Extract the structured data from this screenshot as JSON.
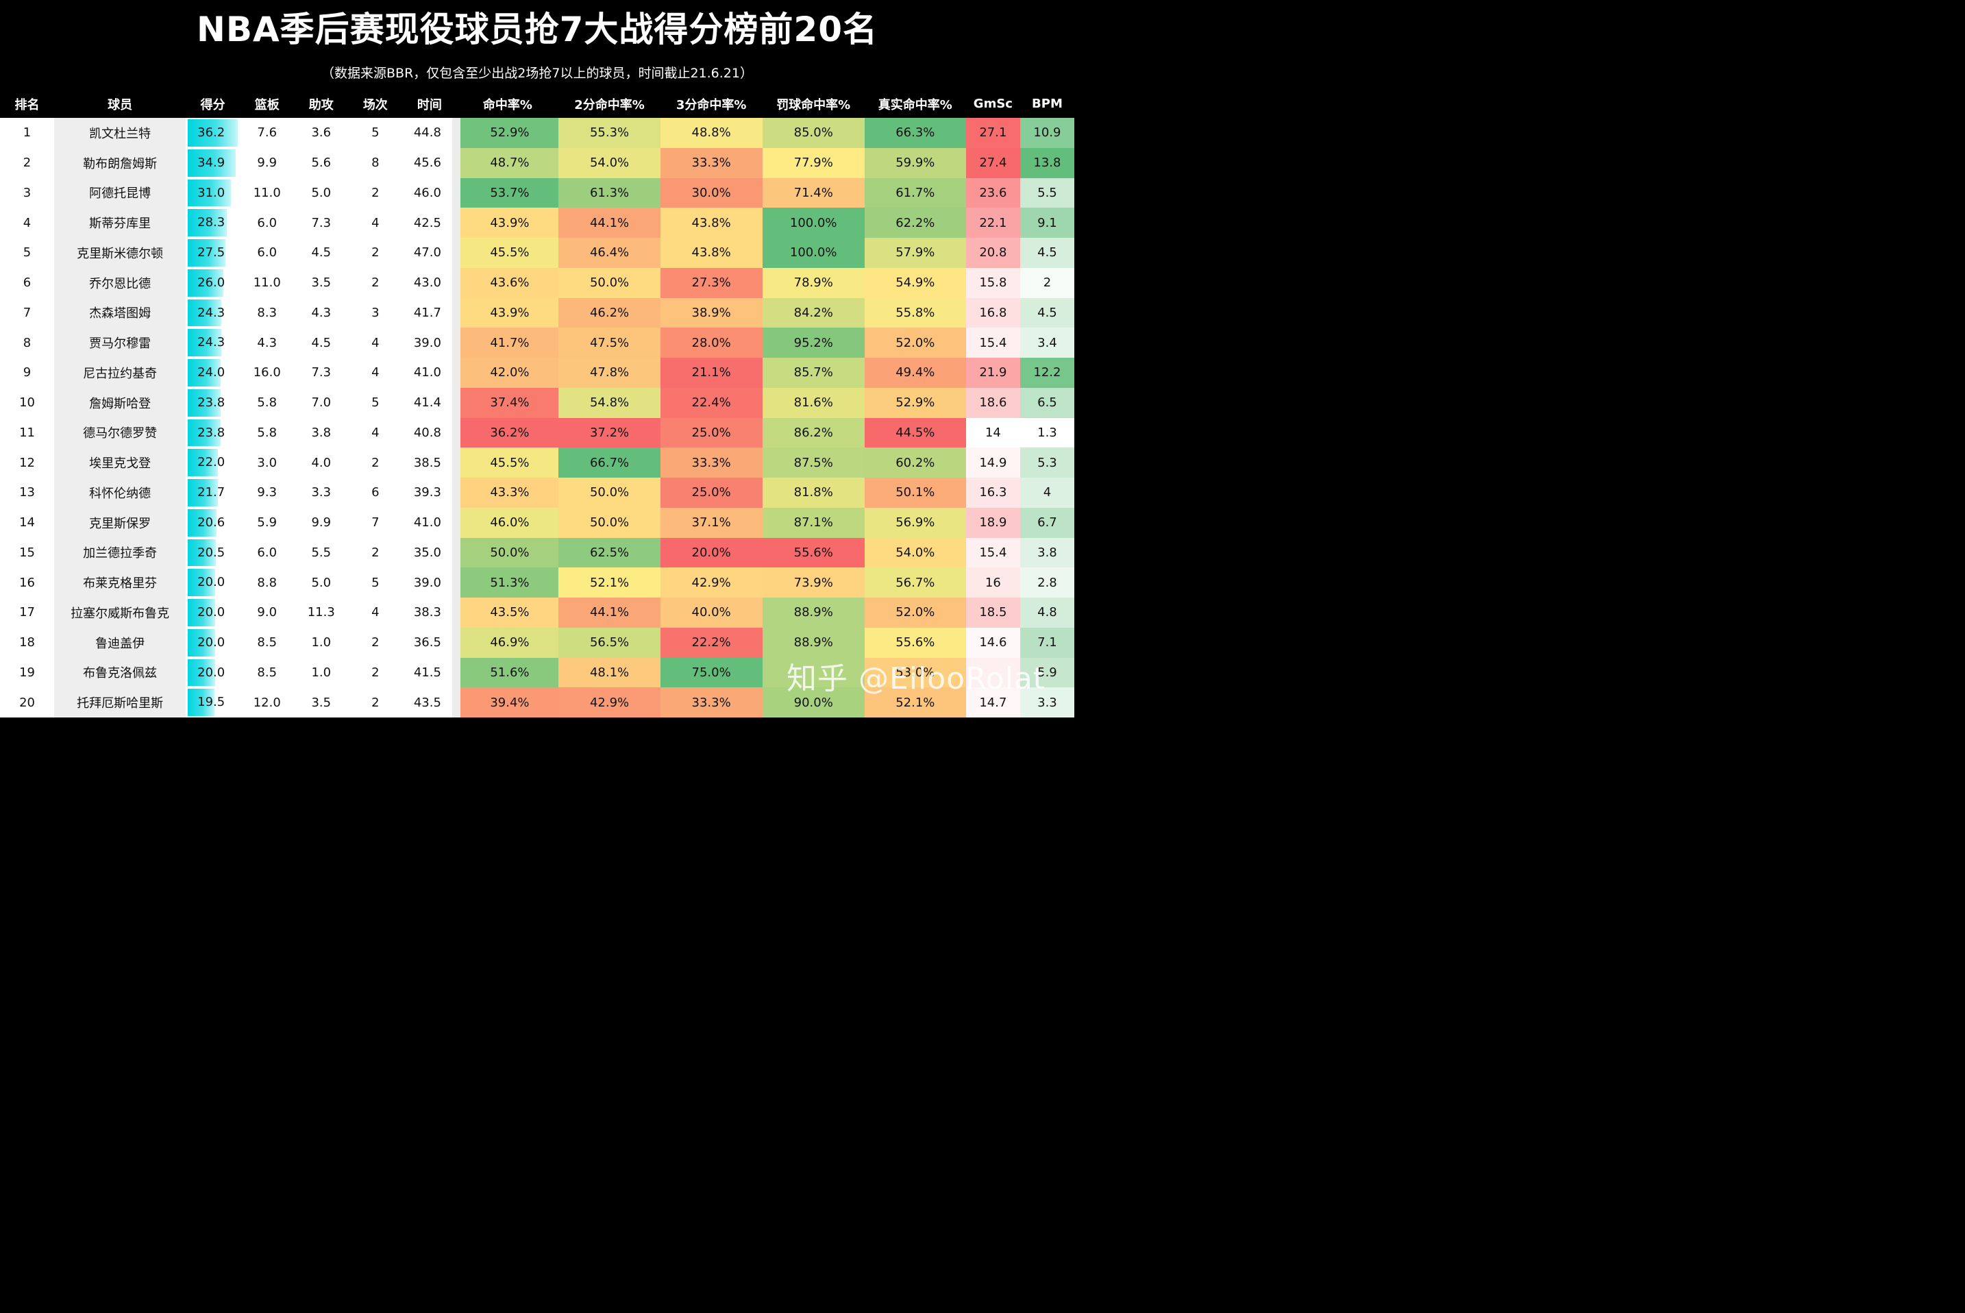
{
  "title": "NBA季后赛现役球员抢7大战得分榜前20名",
  "subtitle": "（数据来源BBR，仅包含至少出战2场抢7以上的球员，时间截止21.6.21）",
  "watermark": "知乎 @EilooRolat",
  "headers": [
    "排名",
    "球员",
    "得分",
    "篮板",
    "助攻",
    "场次",
    "时间",
    "命中率%",
    "2分命中率%",
    "3分命中率%",
    "罚球命中率%",
    "真实命中率%",
    "GmSc",
    "BPM"
  ],
  "rows": [
    [
      "1",
      "凯文杜兰特",
      "36.2",
      "7.6",
      "3.6",
      "5",
      "44.8",
      "52.9%",
      "55.3%",
      "48.8%",
      "85.0%",
      "66.3%",
      "27.1",
      "10.9"
    ],
    [
      "2",
      "勒布朗詹姆斯",
      "34.9",
      "9.9",
      "5.6",
      "8",
      "45.6",
      "48.7%",
      "54.0%",
      "33.3%",
      "77.9%",
      "59.9%",
      "27.4",
      "13.8"
    ],
    [
      "3",
      "阿德托昆博",
      "31.0",
      "11.0",
      "5.0",
      "2",
      "46.0",
      "53.7%",
      "61.3%",
      "30.0%",
      "71.4%",
      "61.7%",
      "23.6",
      "5.5"
    ],
    [
      "4",
      "斯蒂芬库里",
      "28.3",
      "6.0",
      "7.3",
      "4",
      "42.5",
      "43.9%",
      "44.1%",
      "43.8%",
      "100.0%",
      "62.2%",
      "22.1",
      "9.1"
    ],
    [
      "5",
      "克里斯米德尔顿",
      "27.5",
      "6.0",
      "4.5",
      "2",
      "47.0",
      "45.5%",
      "46.4%",
      "43.8%",
      "100.0%",
      "57.9%",
      "20.8",
      "4.5"
    ],
    [
      "6",
      "乔尔恩比德",
      "26.0",
      "11.0",
      "3.5",
      "2",
      "43.0",
      "43.6%",
      "50.0%",
      "27.3%",
      "78.9%",
      "54.9%",
      "15.8",
      "2"
    ],
    [
      "7",
      "杰森塔图姆",
      "24.3",
      "8.3",
      "4.3",
      "3",
      "41.7",
      "43.9%",
      "46.2%",
      "38.9%",
      "84.2%",
      "55.8%",
      "16.8",
      "4.5"
    ],
    [
      "8",
      "贾马尔穆雷",
      "24.3",
      "4.3",
      "4.5",
      "4",
      "39.0",
      "41.7%",
      "47.5%",
      "28.0%",
      "95.2%",
      "52.0%",
      "15.4",
      "3.4"
    ],
    [
      "9",
      "尼古拉约基奇",
      "24.0",
      "16.0",
      "7.3",
      "4",
      "41.0",
      "42.0%",
      "47.8%",
      "21.1%",
      "85.7%",
      "49.4%",
      "21.9",
      "12.2"
    ],
    [
      "10",
      "詹姆斯哈登",
      "23.8",
      "5.8",
      "7.0",
      "5",
      "41.4",
      "37.4%",
      "54.8%",
      "22.4%",
      "81.6%",
      "52.9%",
      "18.6",
      "6.5"
    ],
    [
      "11",
      "德马尔德罗赞",
      "23.8",
      "5.8",
      "3.8",
      "4",
      "40.8",
      "36.2%",
      "37.2%",
      "25.0%",
      "86.2%",
      "44.5%",
      "14",
      "1.3"
    ],
    [
      "12",
      "埃里克戈登",
      "22.0",
      "3.0",
      "4.0",
      "2",
      "38.5",
      "45.5%",
      "66.7%",
      "33.3%",
      "87.5%",
      "60.2%",
      "14.9",
      "5.3"
    ],
    [
      "13",
      "科怀伦纳德",
      "21.7",
      "9.3",
      "3.3",
      "6",
      "39.3",
      "43.3%",
      "50.0%",
      "25.0%",
      "81.8%",
      "50.1%",
      "16.3",
      "4"
    ],
    [
      "14",
      "克里斯保罗",
      "20.6",
      "5.9",
      "9.9",
      "7",
      "41.0",
      "46.0%",
      "50.0%",
      "37.1%",
      "87.1%",
      "56.9%",
      "18.9",
      "6.7"
    ],
    [
      "15",
      "加兰德拉季奇",
      "20.5",
      "6.0",
      "5.5",
      "2",
      "35.0",
      "50.0%",
      "62.5%",
      "20.0%",
      "55.6%",
      "54.0%",
      "15.4",
      "3.8"
    ],
    [
      "16",
      "布莱克格里芬",
      "20.0",
      "8.8",
      "5.0",
      "5",
      "39.0",
      "51.3%",
      "52.1%",
      "42.9%",
      "73.9%",
      "56.7%",
      "16",
      "2.8"
    ],
    [
      "17",
      "拉塞尔威斯布鲁克",
      "20.0",
      "9.0",
      "11.3",
      "4",
      "38.3",
      "43.5%",
      "44.1%",
      "40.0%",
      "88.9%",
      "52.0%",
      "18.5",
      "4.8"
    ],
    [
      "18",
      "鲁迪盖伊",
      "20.0",
      "8.5",
      "1.0",
      "2",
      "36.5",
      "46.9%",
      "56.5%",
      "22.2%",
      "88.9%",
      "55.6%",
      "14.6",
      "7.1"
    ],
    [
      "19",
      "布鲁克洛佩兹",
      "20.0",
      "8.5",
      "1.0",
      "2",
      "41.5",
      "51.6%",
      "48.1%",
      "75.0%",
      "",
      "53.0%",
      "",
      "5.9"
    ],
    [
      "20",
      "托拜厄斯哈里斯",
      "19.5",
      "12.0",
      "3.5",
      "2",
      "43.5",
      "39.4%",
      "42.9%",
      "33.3%",
      "90.0%",
      "52.1%",
      "14.7",
      "3.3"
    ]
  ],
  "colors": {
    "heat_bad": "#f8696b",
    "heat_mid": "#ffeb84",
    "heat_good": "#63be7b",
    "gmsc_high": "#f8696b",
    "bpm_high": "#63be7b",
    "score_bar": "#00d4de"
  }
}
